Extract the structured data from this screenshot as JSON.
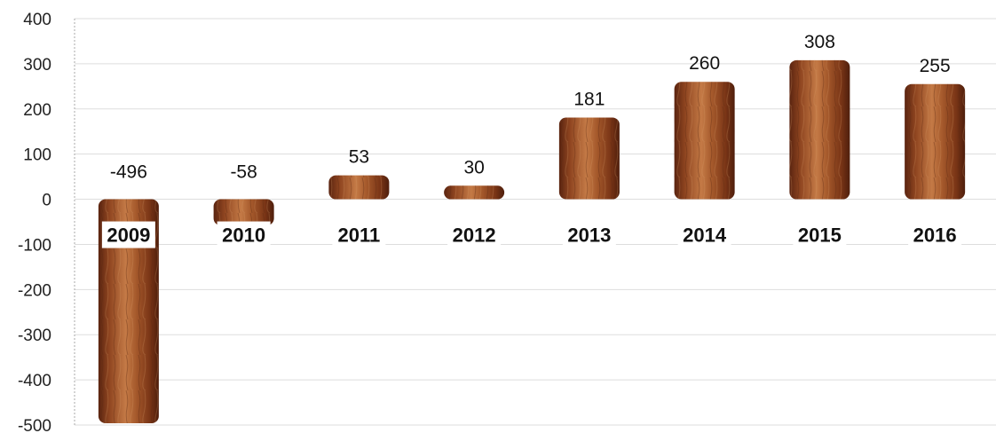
{
  "chart_data": {
    "type": "bar",
    "categories": [
      "2009",
      "2010",
      "2011",
      "2012",
      "2013",
      "2014",
      "2015",
      "2016"
    ],
    "values": [
      -496,
      -58,
      53,
      30,
      181,
      260,
      308,
      255
    ],
    "data_labels": [
      "-496",
      "-58",
      "53",
      "30",
      "181",
      "260",
      "308",
      "255"
    ],
    "title": "",
    "xlabel": "",
    "ylabel": "",
    "ylim": [
      -500,
      400
    ],
    "yticks": [
      400,
      300,
      200,
      100,
      0,
      -100,
      -200,
      -300,
      -400,
      -500
    ],
    "ytick_labels": [
      "400",
      "300",
      "200",
      "100",
      "0",
      "-100",
      "-200",
      "-300",
      "-400",
      "-500"
    ],
    "grid": true,
    "legend": "none",
    "colors": {
      "bar_dark": "#6e2f12",
      "bar_mid": "#a85a2e",
      "bar_light": "#c77a48",
      "grid": "#dddddd",
      "axis": "#aaaaaa"
    }
  }
}
